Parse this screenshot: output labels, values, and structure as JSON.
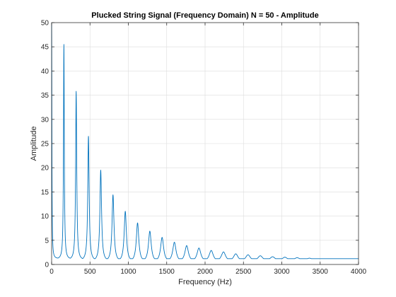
{
  "chart_data": {
    "type": "line",
    "title": "Plucked String Signal (Frequency Domain) N = 50 - Amplitude",
    "xlabel": "Frequency (Hz)",
    "ylabel": "Amplitude",
    "xlim": [
      0,
      4000
    ],
    "ylim": [
      0,
      50
    ],
    "xticks": [
      0,
      500,
      1000,
      1500,
      2000,
      2500,
      3000,
      3500,
      4000
    ],
    "yticks": [
      0,
      5,
      10,
      15,
      20,
      25,
      30,
      35,
      40,
      45,
      50
    ],
    "grid": true,
    "color": "#0072BD",
    "series": [
      {
        "peaks": [
          {
            "x": 0,
            "y": 50
          },
          {
            "x": 160,
            "y": 45.5
          },
          {
            "x": 320,
            "y": 35.8
          },
          {
            "x": 480,
            "y": 26.5
          },
          {
            "x": 640,
            "y": 19.5
          },
          {
            "x": 800,
            "y": 14.4
          },
          {
            "x": 960,
            "y": 11.0
          },
          {
            "x": 1120,
            "y": 8.6
          },
          {
            "x": 1280,
            "y": 6.9
          },
          {
            "x": 1440,
            "y": 5.6
          },
          {
            "x": 1600,
            "y": 4.6
          },
          {
            "x": 1760,
            "y": 3.9
          },
          {
            "x": 1920,
            "y": 3.4
          },
          {
            "x": 2080,
            "y": 2.9
          },
          {
            "x": 2240,
            "y": 2.6
          },
          {
            "x": 2400,
            "y": 2.2
          },
          {
            "x": 2560,
            "y": 2.0
          },
          {
            "x": 2720,
            "y": 1.8
          },
          {
            "x": 2880,
            "y": 1.6
          },
          {
            "x": 3040,
            "y": 1.5
          },
          {
            "x": 3200,
            "y": 1.4
          },
          {
            "x": 3360,
            "y": 1.3
          },
          {
            "x": 3520,
            "y": 1.2
          },
          {
            "x": 3680,
            "y": 1.1
          },
          {
            "x": 3840,
            "y": 1.05
          },
          {
            "x": 4000,
            "y": 1.0
          }
        ],
        "baseline": [
          {
            "x": 0,
            "y": 1.2
          },
          {
            "x": 500,
            "y": 0.7
          },
          {
            "x": 1000,
            "y": 0.5
          },
          {
            "x": 1500,
            "y": 0.5
          },
          {
            "x": 2000,
            "y": 0.55
          },
          {
            "x": 2500,
            "y": 0.6
          },
          {
            "x": 3000,
            "y": 0.7
          },
          {
            "x": 3500,
            "y": 0.8
          },
          {
            "x": 4000,
            "y": 0.9
          }
        ]
      }
    ]
  }
}
